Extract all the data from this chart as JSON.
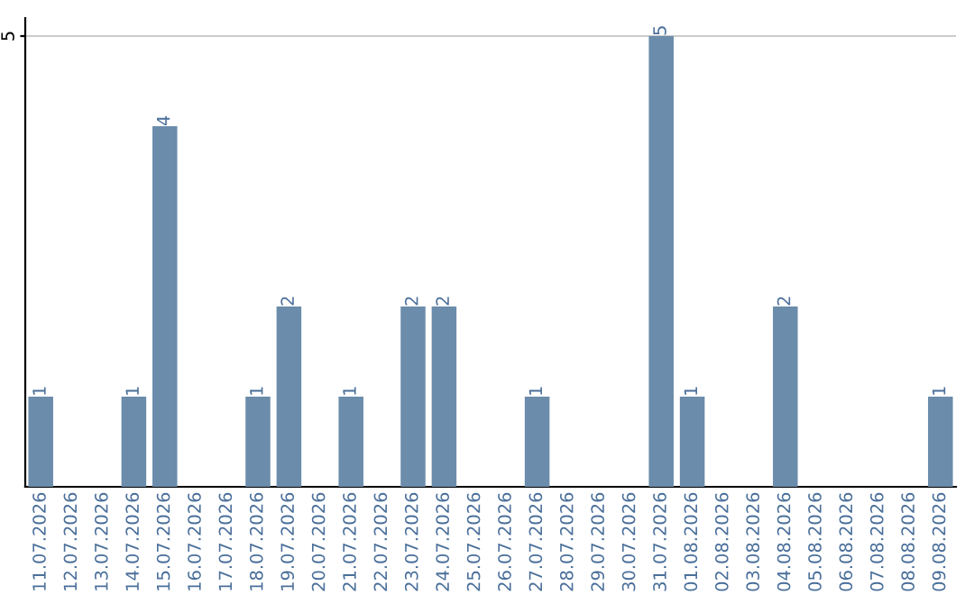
{
  "chart_data": {
    "type": "bar",
    "categories": [
      "11.07.2026",
      "12.07.2026",
      "13.07.2026",
      "14.07.2026",
      "15.07.2026",
      "16.07.2026",
      "17.07.2026",
      "18.07.2026",
      "19.07.2026",
      "20.07.2026",
      "21.07.2026",
      "22.07.2026",
      "23.07.2026",
      "24.07.2026",
      "25.07.2026",
      "26.07.2026",
      "27.07.2026",
      "28.07.2026",
      "29.07.2026",
      "30.07.2026",
      "31.07.2026",
      "01.08.2026",
      "02.08.2026",
      "03.08.2026",
      "04.08.2026",
      "05.08.2026",
      "06.08.2026",
      "07.08.2026",
      "08.08.2026",
      "09.08.2026"
    ],
    "values": [
      1,
      0,
      0,
      1,
      4,
      0,
      0,
      1,
      2,
      0,
      1,
      0,
      2,
      2,
      0,
      0,
      1,
      0,
      0,
      0,
      5,
      1,
      0,
      0,
      2,
      0,
      0,
      0,
      0,
      1
    ],
    "value_labels": [
      "1",
      null,
      null,
      "1",
      "4",
      null,
      null,
      "1",
      "2",
      null,
      "1",
      null,
      "2",
      "2",
      null,
      null,
      "1",
      null,
      null,
      null,
      "5",
      "1",
      null,
      null,
      "2",
      null,
      null,
      null,
      null,
      "1"
    ],
    "color": "#6b8cab",
    "ylim": [
      0,
      5.2
    ],
    "yticks": [
      5
    ],
    "grid": "y"
  }
}
